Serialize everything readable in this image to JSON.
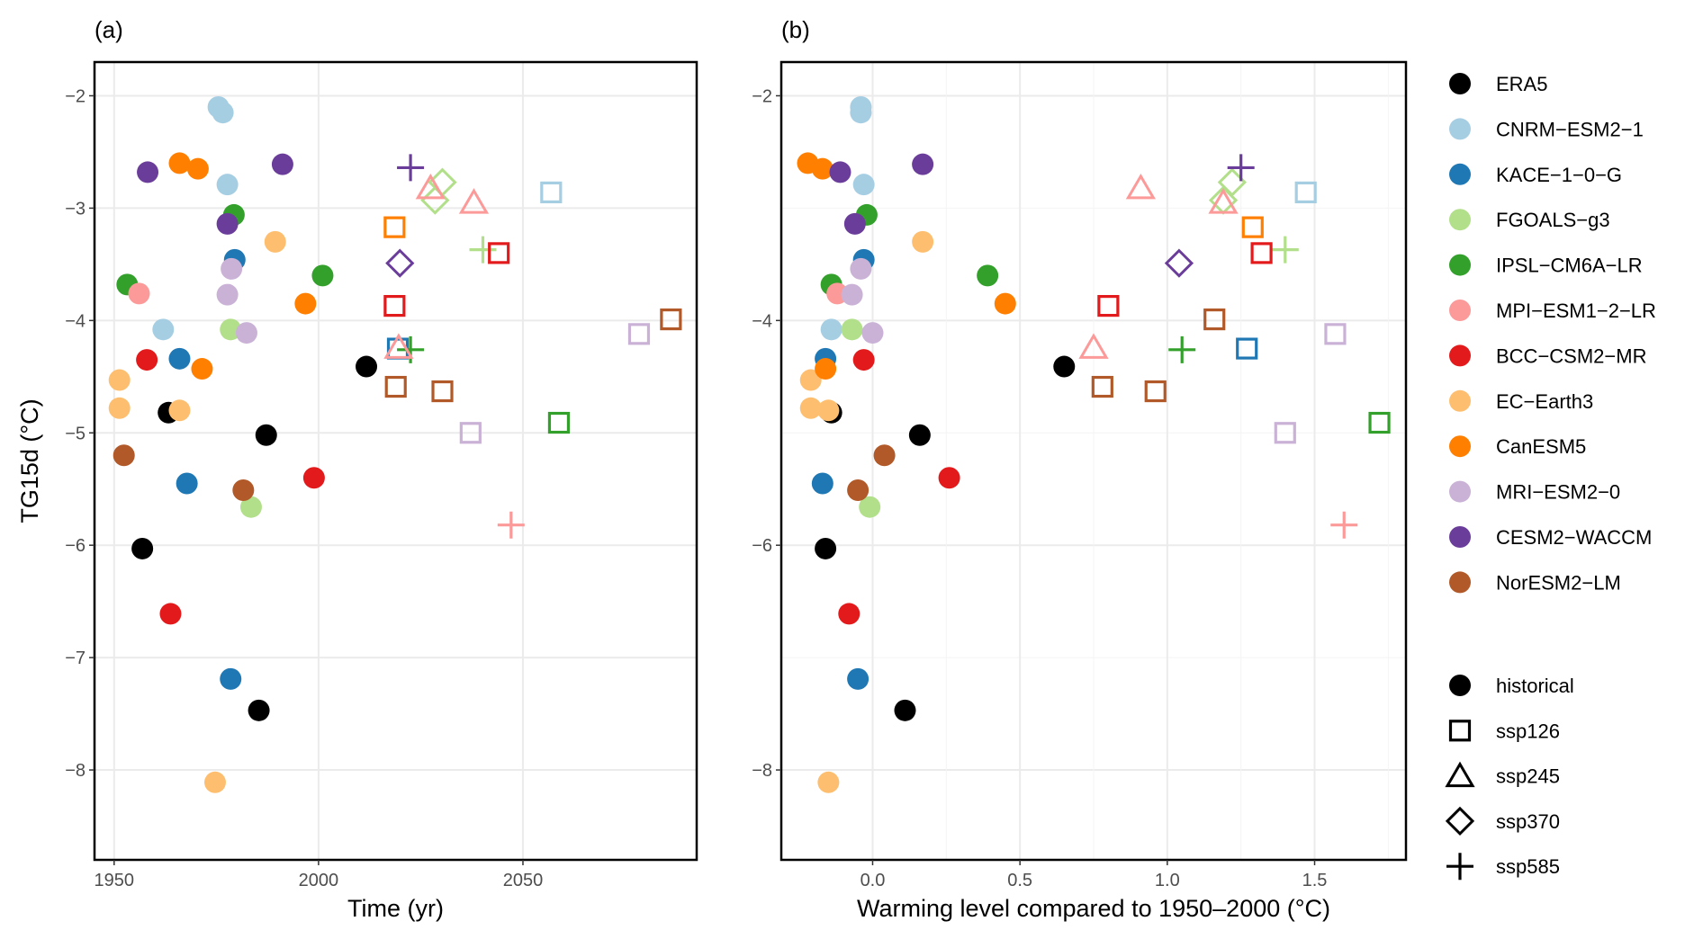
{
  "chart_data": [
    {
      "panel_label": "(a)",
      "type": "scatter",
      "xlabel": "Time (yr)",
      "ylabel": "TG15d (°C)",
      "xkey": "time",
      "xlim": [
        1945.2,
        2092.5
      ],
      "ylim": [
        -8.8,
        -1.7
      ],
      "xticks": [
        1950,
        2000,
        2050
      ],
      "yticks": [
        -2,
        -3,
        -4,
        -5,
        -6,
        -7,
        -8
      ],
      "grid": true
    },
    {
      "panel_label": "(b)",
      "type": "scatter",
      "xlabel": "Warming level compared to 1950–2000 (°C)",
      "ylabel": "",
      "xkey": "warming",
      "xlim": [
        -0.31,
        1.81
      ],
      "ylim": [
        -8.8,
        -1.7
      ],
      "xticks": [
        0,
        0.5,
        1.0,
        1.5
      ],
      "xtick_labels": [
        "0.0",
        "0.5",
        "1.0",
        "1.5"
      ],
      "yticks": [
        -2,
        -4,
        -6,
        -8
      ],
      "grid": true
    }
  ],
  "models": [
    {
      "name": "ERA5",
      "color": "#000000",
      "points": [
        {
          "s": "historical",
          "time": 1963.3,
          "warming": -0.14,
          "tg": -4.82
        },
        {
          "s": "historical",
          "time": 1956.9,
          "warming": -0.16,
          "tg": -6.03
        },
        {
          "s": "historical",
          "time": 1987.2,
          "warming": 0.16,
          "tg": -5.02
        },
        {
          "s": "historical",
          "time": 1985.4,
          "warming": 0.11,
          "tg": -7.47
        },
        {
          "s": "historical",
          "time": 2011.7,
          "warming": 0.65,
          "tg": -4.41
        }
      ]
    },
    {
      "name": "CNRM−ESM2−1",
      "color": "#a6cee3",
      "points": [
        {
          "s": "historical",
          "time": 1975.5,
          "warming": -0.04,
          "tg": -2.1
        },
        {
          "s": "historical",
          "time": 1976.6,
          "warming": -0.04,
          "tg": -2.15
        },
        {
          "s": "historical",
          "time": 1977.7,
          "warming": -0.03,
          "tg": -2.79
        },
        {
          "s": "historical",
          "time": 1962.0,
          "warming": -0.14,
          "tg": -4.08
        },
        {
          "s": "ssp126",
          "time": 2056.9,
          "warming": 1.47,
          "tg": -2.86
        }
      ]
    },
    {
      "name": "KACE−1−0−G",
      "color": "#1f78b4",
      "points": [
        {
          "s": "historical",
          "time": 1979.5,
          "warming": -0.03,
          "tg": -3.46
        },
        {
          "s": "historical",
          "time": 1966.0,
          "warming": -0.16,
          "tg": -4.34
        },
        {
          "s": "historical",
          "time": 1967.8,
          "warming": -0.17,
          "tg": -5.45
        },
        {
          "s": "historical",
          "time": 1978.5,
          "warming": -0.05,
          "tg": -7.19
        },
        {
          "s": "ssp126",
          "time": 2019.4,
          "warming": 1.27,
          "tg": -4.25
        }
      ]
    },
    {
      "name": "FGOALS−g3",
      "color": "#b2df8a",
      "points": [
        {
          "s": "historical",
          "time": 1978.5,
          "warming": -0.07,
          "tg": -4.08
        },
        {
          "s": "historical",
          "time": 1983.5,
          "warming": -0.01,
          "tg": -5.66
        },
        {
          "s": "ssp370",
          "time": 2030.3,
          "warming": 1.22,
          "tg": -2.77
        },
        {
          "s": "ssp370",
          "time": 2028.5,
          "warming": 1.19,
          "tg": -2.93
        },
        {
          "s": "ssp585",
          "time": 2040.2,
          "warming": 1.4,
          "tg": -3.37
        }
      ]
    },
    {
      "name": "IPSL−CM6A−LR",
      "color": "#33a02c",
      "points": [
        {
          "s": "historical",
          "time": 1979.3,
          "warming": -0.02,
          "tg": -3.06
        },
        {
          "s": "historical",
          "time": 1953.2,
          "warming": -0.14,
          "tg": -3.68
        },
        {
          "s": "historical",
          "time": 2001.0,
          "warming": 0.39,
          "tg": -3.6
        },
        {
          "s": "ssp585",
          "time": 2022.5,
          "warming": 1.05,
          "tg": -4.26
        },
        {
          "s": "ssp126",
          "time": 2058.8,
          "warming": 1.72,
          "tg": -4.91
        }
      ]
    },
    {
      "name": "MPI−ESM1−2−LR",
      "color": "#fb9a99",
      "points": [
        {
          "s": "historical",
          "time": 1956.1,
          "warming": -0.12,
          "tg": -3.76
        },
        {
          "s": "ssp245",
          "time": 2027.4,
          "warming": 0.91,
          "tg": -2.82
        },
        {
          "s": "ssp245",
          "time": 2038.0,
          "warming": 1.19,
          "tg": -2.95
        },
        {
          "s": "ssp245",
          "time": 2019.6,
          "warming": 0.75,
          "tg": -4.24
        },
        {
          "s": "ssp585",
          "time": 2047.1,
          "warming": 1.6,
          "tg": -5.82
        }
      ]
    },
    {
      "name": "BCC−CSM2−MR",
      "color": "#e31a1c",
      "points": [
        {
          "s": "historical",
          "time": 1958.0,
          "warming": -0.03,
          "tg": -4.35
        },
        {
          "s": "historical",
          "time": 1963.8,
          "warming": -0.08,
          "tg": -6.61
        },
        {
          "s": "historical",
          "time": 1998.9,
          "warming": 0.26,
          "tg": -5.4
        },
        {
          "s": "ssp126",
          "time": 2018.6,
          "warming": 0.8,
          "tg": -3.87
        },
        {
          "s": "ssp126",
          "time": 2044.1,
          "warming": 1.32,
          "tg": -3.4
        }
      ]
    },
    {
      "name": "EC−Earth3",
      "color": "#fdbf6f",
      "points": [
        {
          "s": "historical",
          "time": 1951.3,
          "warming": -0.21,
          "tg": -4.53
        },
        {
          "s": "historical",
          "time": 1951.3,
          "warming": -0.21,
          "tg": -4.78
        },
        {
          "s": "historical",
          "time": 1966.0,
          "warming": -0.15,
          "tg": -4.8
        },
        {
          "s": "historical",
          "time": 1989.4,
          "warming": 0.17,
          "tg": -3.3
        },
        {
          "s": "historical",
          "time": 1974.7,
          "warming": -0.15,
          "tg": -8.11
        }
      ]
    },
    {
      "name": "CanESM5",
      "color": "#ff7f00",
      "points": [
        {
          "s": "historical",
          "time": 1966.0,
          "warming": -0.22,
          "tg": -2.6
        },
        {
          "s": "historical",
          "time": 1970.5,
          "warming": -0.17,
          "tg": -2.65
        },
        {
          "s": "historical",
          "time": 1996.8,
          "warming": 0.45,
          "tg": -3.85
        },
        {
          "s": "historical",
          "time": 1971.5,
          "warming": -0.16,
          "tg": -4.43
        },
        {
          "s": "ssp126",
          "time": 2018.6,
          "warming": 1.29,
          "tg": -3.17
        }
      ]
    },
    {
      "name": "MRI−ESM2−0",
      "color": "#cab2d6",
      "points": [
        {
          "s": "historical",
          "time": 1978.7,
          "warming": -0.04,
          "tg": -3.54
        },
        {
          "s": "historical",
          "time": 1977.7,
          "warming": -0.07,
          "tg": -3.77
        },
        {
          "s": "historical",
          "time": 1982.4,
          "warming": 0.0,
          "tg": -4.11
        },
        {
          "s": "ssp126",
          "time": 2037.2,
          "warming": 1.4,
          "tg": -5.0
        },
        {
          "s": "ssp126",
          "time": 2078.4,
          "warming": 1.57,
          "tg": -4.12
        }
      ]
    },
    {
      "name": "CESM2−WACCM",
      "color": "#6a3d9a",
      "points": [
        {
          "s": "historical",
          "time": 1958.2,
          "warming": -0.11,
          "tg": -2.68
        },
        {
          "s": "historical",
          "time": 1991.2,
          "warming": 0.17,
          "tg": -2.61
        },
        {
          "s": "historical",
          "time": 1977.7,
          "warming": -0.06,
          "tg": -3.14
        },
        {
          "s": "ssp370",
          "time": 2019.9,
          "warming": 1.04,
          "tg": -3.49
        },
        {
          "s": "ssp585",
          "time": 2022.5,
          "warming": 1.25,
          "tg": -2.64
        }
      ]
    },
    {
      "name": "NorESM2−LM",
      "color": "#b15928",
      "points": [
        {
          "s": "historical",
          "time": 1952.4,
          "warming": 0.04,
          "tg": -5.2
        },
        {
          "s": "historical",
          "time": 1981.6,
          "warming": -0.05,
          "tg": -5.51
        },
        {
          "s": "ssp126",
          "time": 2018.9,
          "warming": 0.78,
          "tg": -4.59
        },
        {
          "s": "ssp126",
          "time": 2030.3,
          "warming": 0.96,
          "tg": -4.63
        },
        {
          "s": "ssp126",
          "time": 2086.2,
          "warming": 1.16,
          "tg": -3.99
        }
      ]
    }
  ],
  "scenarios": [
    {
      "name": "historical",
      "shape": "filled-circle"
    },
    {
      "name": "ssp126",
      "shape": "open-square"
    },
    {
      "name": "ssp245",
      "shape": "open-triangle"
    },
    {
      "name": "ssp370",
      "shape": "open-diamond"
    },
    {
      "name": "ssp585",
      "shape": "plus"
    }
  ]
}
